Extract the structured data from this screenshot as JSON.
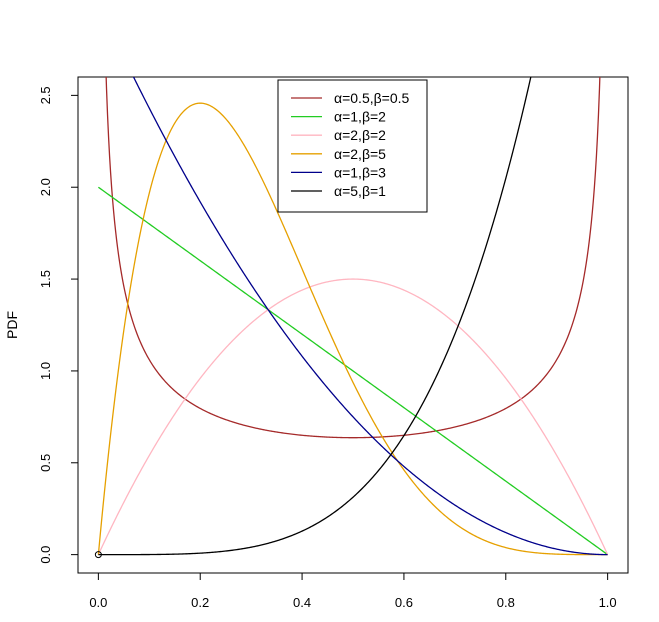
{
  "chart_data": {
    "type": "line",
    "title": "",
    "xlabel": "",
    "ylabel": "PDF",
    "xlim": [
      -0.04,
      1.04
    ],
    "ylim": [
      -0.1,
      2.6
    ],
    "xticks": [
      "0.0",
      "0.2",
      "0.4",
      "0.6",
      "0.8",
      "1.0"
    ],
    "yticks": [
      "0.0",
      "0.5",
      "1.0",
      "1.5",
      "2.0",
      "2.5"
    ],
    "grid": false,
    "legend_position": "top-center",
    "series": [
      {
        "name": "α=0.5,β=0.5",
        "alpha": 0.5,
        "beta": 0.5,
        "color": "#a52a2a",
        "x": [
          0.02,
          0.05,
          0.1,
          0.2,
          0.3,
          0.4,
          0.5,
          0.6,
          0.7,
          0.8,
          0.9,
          0.95,
          0.98
        ],
        "y": [
          2.27,
          1.46,
          1.06,
          0.8,
          0.69,
          0.65,
          0.64,
          0.65,
          0.69,
          0.8,
          1.06,
          1.46,
          2.27
        ]
      },
      {
        "name": "α=1,β=2",
        "alpha": 1,
        "beta": 2,
        "color": "#22cc22",
        "x": [
          0,
          0.2,
          0.4,
          0.6,
          0.8,
          1.0
        ],
        "y": [
          2.0,
          1.6,
          1.2,
          0.8,
          0.4,
          0.0
        ]
      },
      {
        "name": "α=2,β=2",
        "alpha": 2,
        "beta": 2,
        "color": "#ffb6c1",
        "x": [
          0,
          0.1,
          0.2,
          0.3,
          0.4,
          0.5,
          0.6,
          0.7,
          0.8,
          0.9,
          1.0
        ],
        "y": [
          0,
          0.54,
          0.96,
          1.26,
          1.44,
          1.5,
          1.44,
          1.26,
          0.96,
          0.54,
          0
        ]
      },
      {
        "name": "α=2,β=5",
        "alpha": 2,
        "beta": 5,
        "color": "#e6a000",
        "x": [
          0,
          0.1,
          0.2,
          0.3,
          0.4,
          0.5,
          0.6,
          0.7,
          0.8,
          0.9,
          1.0
        ],
        "y": [
          0,
          1.77,
          2.46,
          2.16,
          1.56,
          0.94,
          0.46,
          0.17,
          0.04,
          0.005,
          0
        ]
      },
      {
        "name": "α=1,β=3",
        "alpha": 1,
        "beta": 3,
        "color": "#00008b",
        "x": [
          0,
          0.1,
          0.2,
          0.3,
          0.4,
          0.5,
          0.6,
          0.7,
          0.8,
          0.9,
          1.0
        ],
        "y": [
          3.0,
          2.43,
          1.92,
          1.47,
          1.08,
          0.75,
          0.48,
          0.27,
          0.12,
          0.03,
          0
        ]
      },
      {
        "name": "α=5,β=1",
        "alpha": 5,
        "beta": 1,
        "color": "#000000",
        "x": [
          0,
          0.2,
          0.4,
          0.5,
          0.6,
          0.7,
          0.8,
          0.85
        ],
        "y": [
          0,
          0.008,
          0.128,
          0.31,
          0.65,
          1.2,
          2.05,
          2.61
        ]
      }
    ]
  }
}
